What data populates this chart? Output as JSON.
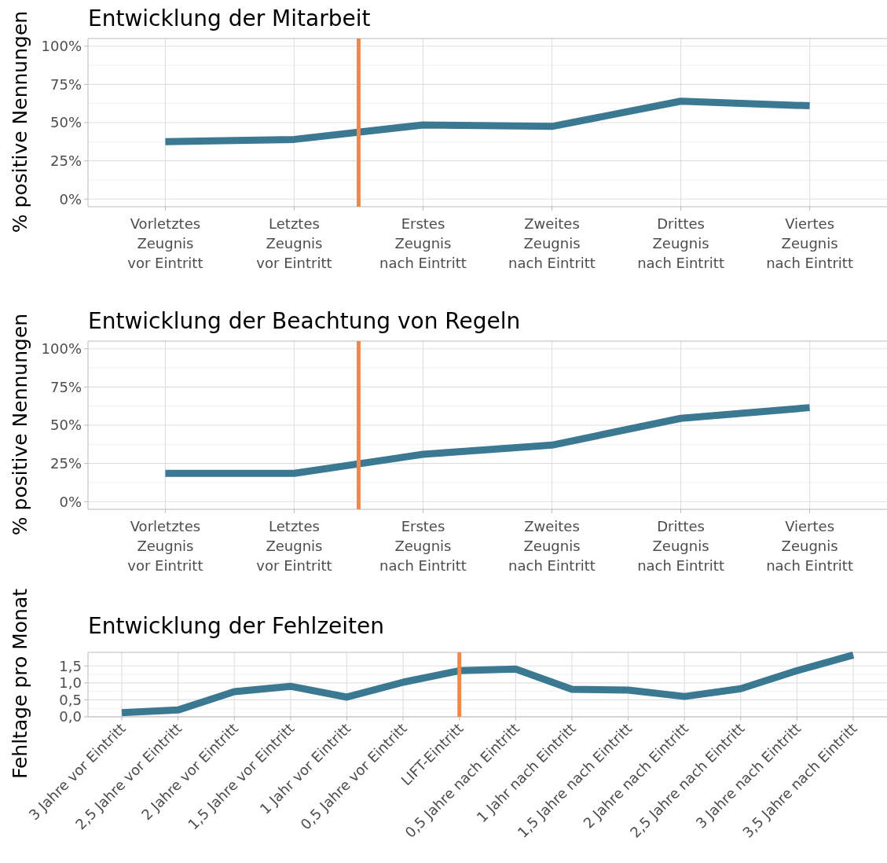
{
  "chart_data": [
    {
      "type": "line",
      "title": "Entwicklung der Mitarbeit",
      "ylabel": "% positive Nennungen",
      "categories": [
        "Vorletztes\nZeugnis\nvor Eintritt",
        "Letztes\nZeugnis\nvor Eintritt",
        "Erstes\nZeugnis\nnach Eintritt",
        "Zweites\nZeugnis\nnach Eintritt",
        "Drittes\nZeugnis\nnach Eintritt",
        "Viertes\nZeugnis\nnach Eintritt"
      ],
      "series": [
        {
          "color": "#3b7891",
          "values": [
            37.5,
            39,
            48.5,
            47.5,
            64,
            61
          ]
        }
      ],
      "ylim": [
        -5,
        105
      ],
      "yticks": [
        {
          "value": 0,
          "label": "0%"
        },
        {
          "value": 25,
          "label": "25%"
        },
        {
          "value": 50,
          "label": "50%"
        },
        {
          "value": 75,
          "label": "75%"
        },
        {
          "value": 100,
          "label": "100%"
        }
      ],
      "grid": true,
      "line_style": "solid",
      "marker": "none"
    },
    {
      "type": "line",
      "title": "Entwicklung der Beachtung von Regeln",
      "ylabel": "% positive Nennungen",
      "categories": [
        "Vorletztes\nZeugnis\nvor Eintritt",
        "Letztes\nZeugnis\nvor Eintritt",
        "Erstes\nZeugnis\nnach Eintritt",
        "Zweites\nZeugnis\nnach Eintritt",
        "Drittes\nZeugnis\nnach Eintritt",
        "Viertes\nZeugnis\nnach Eintritt"
      ],
      "series": [
        {
          "color": "#3b7891",
          "values": [
            18.5,
            18.5,
            31,
            37,
            54.5,
            61.5
          ]
        }
      ],
      "ylim": [
        -5,
        105
      ],
      "yticks": [
        {
          "value": 0,
          "label": "0%"
        },
        {
          "value": 25,
          "label": "25%"
        },
        {
          "value": 50,
          "label": "50%"
        },
        {
          "value": 75,
          "label": "75%"
        },
        {
          "value": 100,
          "label": "100%"
        }
      ],
      "grid": true,
      "line_style": "solid",
      "marker": "none"
    },
    {
      "type": "line",
      "title": "Entwicklung der Fehlzeiten",
      "ylabel": "Fehltage pro Monat",
      "categories": [
        "3 Jahre vor Eintritt",
        "2,5 Jahre vor Eintritt",
        "2 Jahre vor Eintritt",
        "1,5 Jahre vor Eintritt",
        "1 Jahr vor Eintritt",
        "0,5 Jahre vor Eintritt",
        "LIFT-Eintritt",
        "0,5 Jahre nach Eintritt",
        "1 Jahr nach Eintritt",
        "1,5 Jahre nach Eintritt",
        "2 Jahre nach Eintritt",
        "2,5 Jahre nach Eintritt",
        "3 Jahre nach Eintritt",
        "3,5 Jahre nach Eintritt"
      ],
      "series": [
        {
          "color": "#3b7891",
          "values": [
            0.12,
            0.2,
            0.74,
            0.9,
            0.58,
            1.02,
            1.36,
            1.41,
            0.81,
            0.79,
            0.6,
            0.83,
            1.36,
            1.82
          ]
        }
      ],
      "ylim": [
        0,
        1.9
      ],
      "yticks": [
        {
          "value": 0,
          "label": "0,0"
        },
        {
          "value": 0.5,
          "label": "0,5"
        },
        {
          "value": 1,
          "label": "1,0"
        },
        {
          "value": 1.5,
          "label": "1,5"
        }
      ],
      "ref_lines": [
        {
          "axis": "x",
          "value": "LIFT-Eintritt",
          "color": "#f0884a"
        }
      ],
      "grid": true,
      "line_style": "solid",
      "marker": "none"
    }
  ]
}
